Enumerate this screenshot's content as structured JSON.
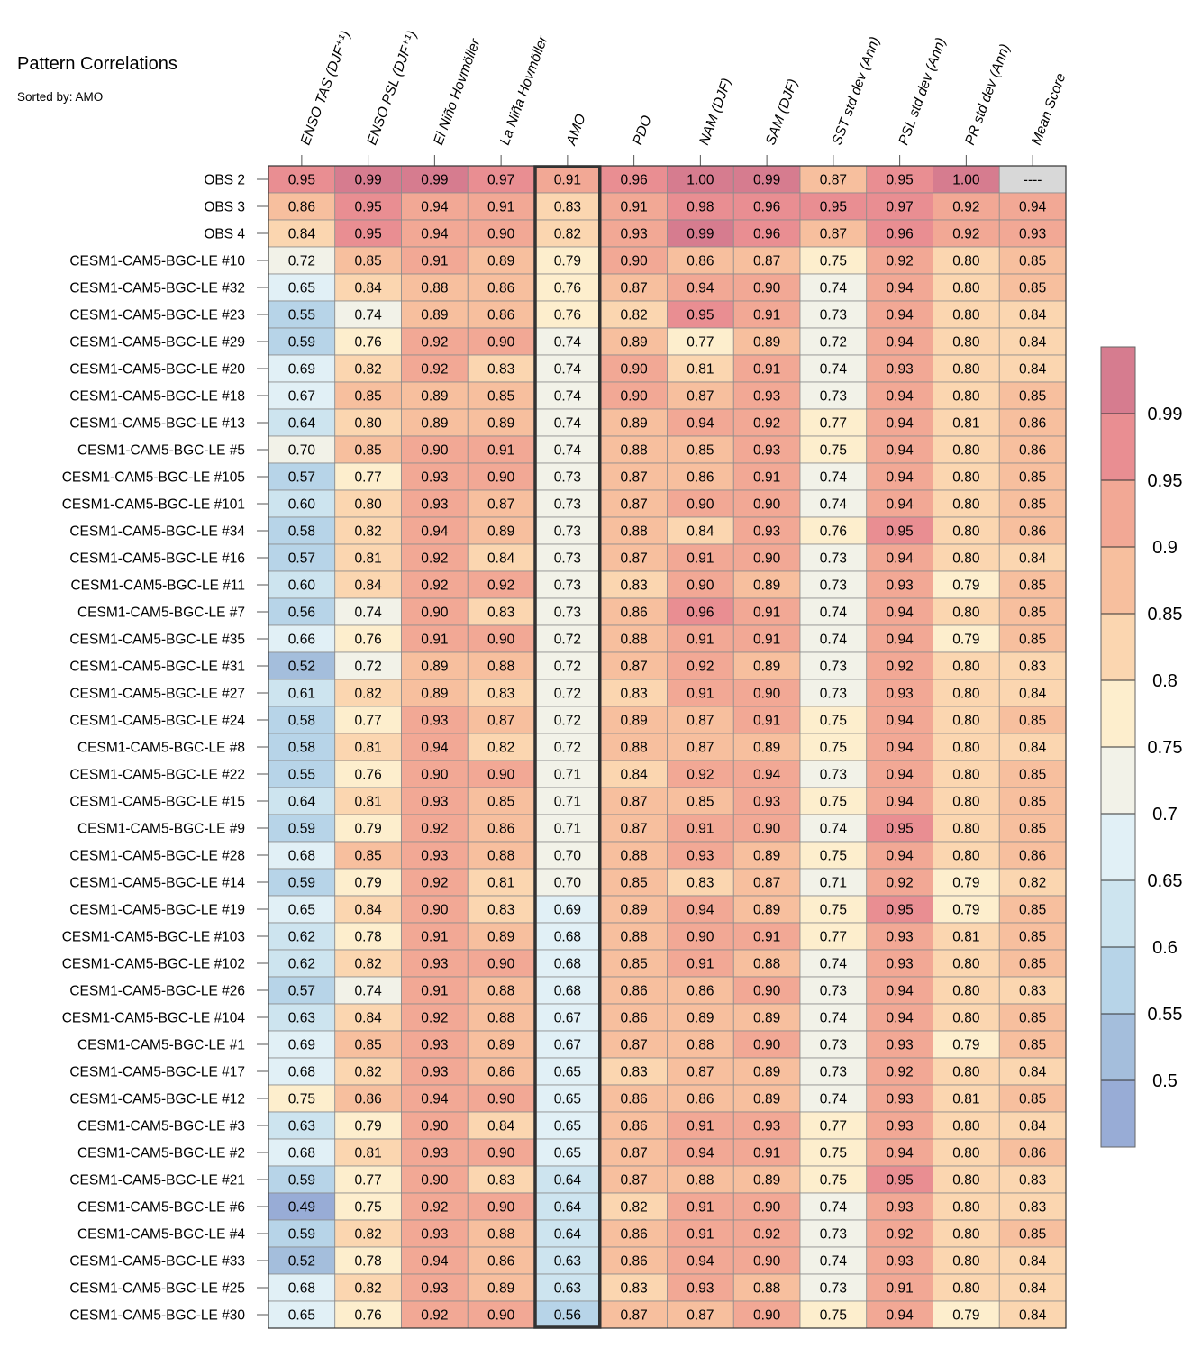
{
  "chart_data": {
    "type": "heatmap",
    "title": "Pattern Correlations",
    "subtitle": "Sorted by: AMO",
    "columns": [
      "ENSO TAS (DJF⁺¹)",
      "ENSO PSL (DJF⁺¹)",
      "El Niño Hovmöller",
      "La Niña Hovmöller",
      "AMO",
      "PDO",
      "NAM (DJF)",
      "SAM (DJF)",
      "SST std dev (Ann)",
      "PSL std dev (Ann)",
      "PR std dev (Ann)",
      "Mean Score"
    ],
    "highlighted_column": "AMO",
    "missing_label": "----",
    "rows": [
      {
        "name": "OBS 2",
        "values": [
          0.95,
          0.99,
          0.99,
          0.97,
          0.91,
          0.96,
          1.0,
          0.99,
          0.87,
          0.95,
          1.0,
          null
        ]
      },
      {
        "name": "OBS 3",
        "values": [
          0.86,
          0.95,
          0.94,
          0.91,
          0.83,
          0.91,
          0.98,
          0.96,
          0.95,
          0.97,
          0.92,
          0.94
        ]
      },
      {
        "name": "OBS 4",
        "values": [
          0.84,
          0.95,
          0.94,
          0.9,
          0.82,
          0.93,
          0.99,
          0.96,
          0.87,
          0.96,
          0.92,
          0.93
        ]
      },
      {
        "name": "CESM1-CAM5-BGC-LE #10",
        "values": [
          0.72,
          0.85,
          0.91,
          0.89,
          0.79,
          0.9,
          0.86,
          0.87,
          0.75,
          0.92,
          0.8,
          0.85
        ]
      },
      {
        "name": "CESM1-CAM5-BGC-LE #32",
        "values": [
          0.65,
          0.84,
          0.88,
          0.86,
          0.76,
          0.87,
          0.94,
          0.9,
          0.74,
          0.94,
          0.8,
          0.85
        ]
      },
      {
        "name": "CESM1-CAM5-BGC-LE #23",
        "values": [
          0.55,
          0.74,
          0.89,
          0.86,
          0.76,
          0.82,
          0.95,
          0.91,
          0.73,
          0.94,
          0.8,
          0.84
        ]
      },
      {
        "name": "CESM1-CAM5-BGC-LE #29",
        "values": [
          0.59,
          0.76,
          0.92,
          0.9,
          0.74,
          0.89,
          0.77,
          0.89,
          0.72,
          0.94,
          0.8,
          0.84
        ]
      },
      {
        "name": "CESM1-CAM5-BGC-LE #20",
        "values": [
          0.69,
          0.82,
          0.92,
          0.83,
          0.74,
          0.9,
          0.81,
          0.91,
          0.74,
          0.93,
          0.8,
          0.84
        ]
      },
      {
        "name": "CESM1-CAM5-BGC-LE #18",
        "values": [
          0.67,
          0.85,
          0.89,
          0.85,
          0.74,
          0.9,
          0.87,
          0.93,
          0.73,
          0.94,
          0.8,
          0.85
        ]
      },
      {
        "name": "CESM1-CAM5-BGC-LE #13",
        "values": [
          0.64,
          0.8,
          0.89,
          0.89,
          0.74,
          0.89,
          0.94,
          0.92,
          0.77,
          0.94,
          0.81,
          0.86
        ]
      },
      {
        "name": "CESM1-CAM5-BGC-LE #5",
        "values": [
          0.7,
          0.85,
          0.9,
          0.91,
          0.74,
          0.88,
          0.85,
          0.93,
          0.75,
          0.94,
          0.8,
          0.86
        ]
      },
      {
        "name": "CESM1-CAM5-BGC-LE #105",
        "values": [
          0.57,
          0.77,
          0.93,
          0.9,
          0.73,
          0.87,
          0.86,
          0.91,
          0.74,
          0.94,
          0.8,
          0.85
        ]
      },
      {
        "name": "CESM1-CAM5-BGC-LE #101",
        "values": [
          0.6,
          0.8,
          0.93,
          0.87,
          0.73,
          0.87,
          0.9,
          0.9,
          0.74,
          0.94,
          0.8,
          0.85
        ]
      },
      {
        "name": "CESM1-CAM5-BGC-LE #34",
        "values": [
          0.58,
          0.82,
          0.94,
          0.89,
          0.73,
          0.88,
          0.84,
          0.93,
          0.76,
          0.95,
          0.8,
          0.86
        ]
      },
      {
        "name": "CESM1-CAM5-BGC-LE #16",
        "values": [
          0.57,
          0.81,
          0.92,
          0.84,
          0.73,
          0.87,
          0.91,
          0.9,
          0.73,
          0.94,
          0.8,
          0.84
        ]
      },
      {
        "name": "CESM1-CAM5-BGC-LE #11",
        "values": [
          0.6,
          0.84,
          0.92,
          0.92,
          0.73,
          0.83,
          0.9,
          0.89,
          0.73,
          0.93,
          0.79,
          0.85
        ]
      },
      {
        "name": "CESM1-CAM5-BGC-LE #7",
        "values": [
          0.56,
          0.74,
          0.9,
          0.83,
          0.73,
          0.86,
          0.96,
          0.91,
          0.74,
          0.94,
          0.8,
          0.85
        ]
      },
      {
        "name": "CESM1-CAM5-BGC-LE #35",
        "values": [
          0.66,
          0.76,
          0.91,
          0.9,
          0.72,
          0.88,
          0.91,
          0.91,
          0.74,
          0.94,
          0.79,
          0.85
        ]
      },
      {
        "name": "CESM1-CAM5-BGC-LE #31",
        "values": [
          0.52,
          0.72,
          0.89,
          0.88,
          0.72,
          0.87,
          0.92,
          0.89,
          0.73,
          0.92,
          0.8,
          0.83
        ]
      },
      {
        "name": "CESM1-CAM5-BGC-LE #27",
        "values": [
          0.61,
          0.82,
          0.89,
          0.83,
          0.72,
          0.83,
          0.91,
          0.9,
          0.73,
          0.93,
          0.8,
          0.84
        ]
      },
      {
        "name": "CESM1-CAM5-BGC-LE #24",
        "values": [
          0.58,
          0.77,
          0.93,
          0.87,
          0.72,
          0.89,
          0.87,
          0.91,
          0.75,
          0.94,
          0.8,
          0.85
        ]
      },
      {
        "name": "CESM1-CAM5-BGC-LE #8",
        "values": [
          0.58,
          0.81,
          0.94,
          0.82,
          0.72,
          0.88,
          0.87,
          0.89,
          0.75,
          0.94,
          0.8,
          0.84
        ]
      },
      {
        "name": "CESM1-CAM5-BGC-LE #22",
        "values": [
          0.55,
          0.76,
          0.9,
          0.9,
          0.71,
          0.84,
          0.92,
          0.94,
          0.73,
          0.94,
          0.8,
          0.85
        ]
      },
      {
        "name": "CESM1-CAM5-BGC-LE #15",
        "values": [
          0.64,
          0.81,
          0.93,
          0.85,
          0.71,
          0.87,
          0.85,
          0.93,
          0.75,
          0.94,
          0.8,
          0.85
        ]
      },
      {
        "name": "CESM1-CAM5-BGC-LE #9",
        "values": [
          0.59,
          0.79,
          0.92,
          0.86,
          0.71,
          0.87,
          0.91,
          0.9,
          0.74,
          0.95,
          0.8,
          0.85
        ]
      },
      {
        "name": "CESM1-CAM5-BGC-LE #28",
        "values": [
          0.68,
          0.85,
          0.93,
          0.88,
          0.7,
          0.88,
          0.93,
          0.89,
          0.75,
          0.94,
          0.8,
          0.86
        ]
      },
      {
        "name": "CESM1-CAM5-BGC-LE #14",
        "values": [
          0.59,
          0.79,
          0.92,
          0.81,
          0.7,
          0.85,
          0.83,
          0.87,
          0.71,
          0.92,
          0.79,
          0.82
        ]
      },
      {
        "name": "CESM1-CAM5-BGC-LE #19",
        "values": [
          0.65,
          0.84,
          0.9,
          0.83,
          0.69,
          0.89,
          0.94,
          0.89,
          0.75,
          0.95,
          0.79,
          0.85
        ]
      },
      {
        "name": "CESM1-CAM5-BGC-LE #103",
        "values": [
          0.62,
          0.78,
          0.91,
          0.89,
          0.68,
          0.88,
          0.9,
          0.91,
          0.77,
          0.93,
          0.81,
          0.85
        ]
      },
      {
        "name": "CESM1-CAM5-BGC-LE #102",
        "values": [
          0.62,
          0.82,
          0.93,
          0.9,
          0.68,
          0.85,
          0.91,
          0.88,
          0.74,
          0.93,
          0.8,
          0.85
        ]
      },
      {
        "name": "CESM1-CAM5-BGC-LE #26",
        "values": [
          0.57,
          0.74,
          0.91,
          0.88,
          0.68,
          0.86,
          0.86,
          0.9,
          0.73,
          0.94,
          0.8,
          0.83
        ]
      },
      {
        "name": "CESM1-CAM5-BGC-LE #104",
        "values": [
          0.63,
          0.84,
          0.92,
          0.88,
          0.67,
          0.86,
          0.89,
          0.89,
          0.74,
          0.94,
          0.8,
          0.85
        ]
      },
      {
        "name": "CESM1-CAM5-BGC-LE #1",
        "values": [
          0.69,
          0.85,
          0.93,
          0.89,
          0.67,
          0.87,
          0.88,
          0.9,
          0.73,
          0.93,
          0.79,
          0.85
        ]
      },
      {
        "name": "CESM1-CAM5-BGC-LE #17",
        "values": [
          0.68,
          0.82,
          0.93,
          0.86,
          0.65,
          0.83,
          0.87,
          0.89,
          0.73,
          0.92,
          0.8,
          0.84
        ]
      },
      {
        "name": "CESM1-CAM5-BGC-LE #12",
        "values": [
          0.75,
          0.86,
          0.94,
          0.9,
          0.65,
          0.86,
          0.86,
          0.89,
          0.74,
          0.93,
          0.81,
          0.85
        ]
      },
      {
        "name": "CESM1-CAM5-BGC-LE #3",
        "values": [
          0.63,
          0.79,
          0.9,
          0.84,
          0.65,
          0.86,
          0.91,
          0.93,
          0.77,
          0.93,
          0.8,
          0.84
        ]
      },
      {
        "name": "CESM1-CAM5-BGC-LE #2",
        "values": [
          0.68,
          0.81,
          0.93,
          0.9,
          0.65,
          0.87,
          0.94,
          0.91,
          0.75,
          0.94,
          0.8,
          0.86
        ]
      },
      {
        "name": "CESM1-CAM5-BGC-LE #21",
        "values": [
          0.59,
          0.77,
          0.9,
          0.83,
          0.64,
          0.87,
          0.88,
          0.89,
          0.75,
          0.95,
          0.8,
          0.83
        ]
      },
      {
        "name": "CESM1-CAM5-BGC-LE #6",
        "values": [
          0.49,
          0.75,
          0.92,
          0.9,
          0.64,
          0.82,
          0.91,
          0.9,
          0.74,
          0.93,
          0.8,
          0.83
        ]
      },
      {
        "name": "CESM1-CAM5-BGC-LE #4",
        "values": [
          0.59,
          0.82,
          0.93,
          0.88,
          0.64,
          0.86,
          0.91,
          0.92,
          0.73,
          0.92,
          0.8,
          0.85
        ]
      },
      {
        "name": "CESM1-CAM5-BGC-LE #33",
        "values": [
          0.52,
          0.78,
          0.94,
          0.86,
          0.63,
          0.86,
          0.94,
          0.9,
          0.74,
          0.93,
          0.8,
          0.84
        ]
      },
      {
        "name": "CESM1-CAM5-BGC-LE #25",
        "values": [
          0.68,
          0.82,
          0.93,
          0.89,
          0.63,
          0.83,
          0.93,
          0.88,
          0.73,
          0.91,
          0.8,
          0.84
        ]
      },
      {
        "name": "CESM1-CAM5-BGC-LE #30",
        "values": [
          0.65,
          0.76,
          0.92,
          0.9,
          0.56,
          0.87,
          0.87,
          0.9,
          0.75,
          0.94,
          0.79,
          0.84
        ]
      }
    ],
    "colorbar": {
      "tick_labels": [
        "0.99",
        "0.95",
        "0.9",
        "0.85",
        "0.8",
        "0.75",
        "0.7",
        "0.65",
        "0.6",
        "0.55",
        "0.5"
      ],
      "boundaries": [
        0.99,
        0.95,
        0.9,
        0.85,
        0.8,
        0.75,
        0.7,
        0.65,
        0.6,
        0.55,
        0.5
      ],
      "colors_high_to_low": [
        "#d67c8f",
        "#e98e92",
        "#f2a895",
        "#f7bf9e",
        "#fbd6b0",
        "#fdeecd",
        "#f2f2e8",
        "#e1f0f6",
        "#cde4ef",
        "#b7d4e8",
        "#a4bedc",
        "#98acd6"
      ],
      "missing_color": "#d8d8d8",
      "highlight_border_color": "#333333",
      "grid_line_color": "#8c8c8c"
    }
  }
}
